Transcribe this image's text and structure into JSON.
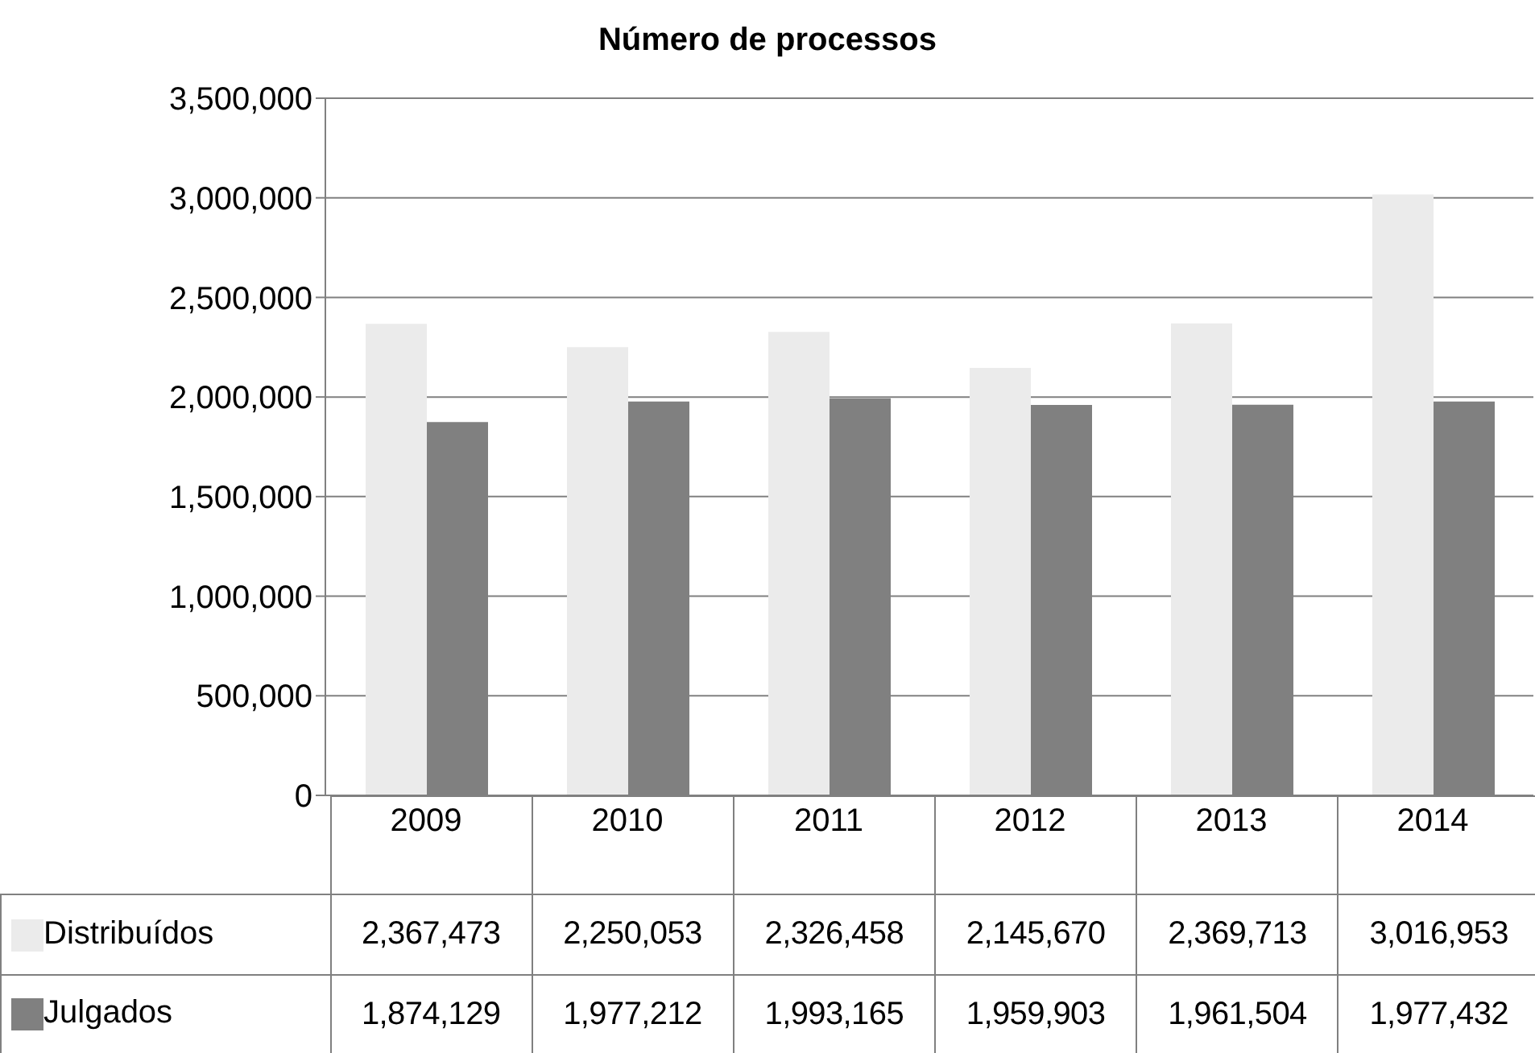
{
  "chart_data": {
    "type": "bar",
    "title": "Número de processos",
    "categories": [
      "2009",
      "2010",
      "2011",
      "2012",
      "2013",
      "2014"
    ],
    "series": [
      {
        "name": "Distribuídos",
        "color": "#ebebeb",
        "values": [
          2367473,
          2250053,
          2326458,
          2145670,
          2369713,
          3016953
        ],
        "value_labels": [
          "2,367,473",
          "2,250,053",
          "2,326,458",
          "2,145,670",
          "2,369,713",
          "3,016,953"
        ]
      },
      {
        "name": "Julgados",
        "color": "#808080",
        "values": [
          1874129,
          1977212,
          1993165,
          1959903,
          1961504,
          1977432
        ],
        "value_labels": [
          "1,874,129",
          "1,977,212",
          "1,993,165",
          "1,959,903",
          "1,961,504",
          "1,977,432"
        ]
      }
    ],
    "ylim": [
      0,
      3500000
    ],
    "yticks": [
      {
        "value": 0,
        "label": "0"
      },
      {
        "value": 500000,
        "label": "500,000"
      },
      {
        "value": 1000000,
        "label": "1,000,000"
      },
      {
        "value": 1500000,
        "label": "1,500,000"
      },
      {
        "value": 2000000,
        "label": "2,000,000"
      },
      {
        "value": 2500000,
        "label": "2,500,000"
      },
      {
        "value": 3000000,
        "label": "3,000,000"
      },
      {
        "value": 3500000,
        "label": "3,500,000"
      }
    ],
    "grid": "y",
    "legend": "bottom"
  }
}
